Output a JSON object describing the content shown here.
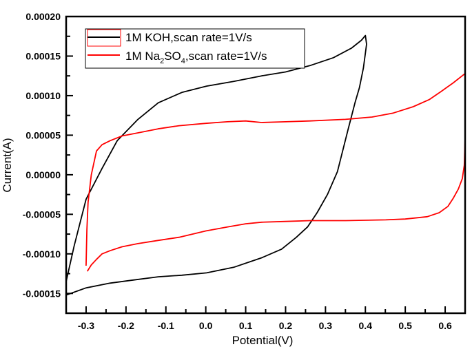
{
  "chart_data": {
    "type": "line",
    "title": "",
    "xlabel": "Potential(V)",
    "ylabel": "Current(A)",
    "xlim": [
      -0.35,
      0.65
    ],
    "ylim": [
      -0.000175,
      0.0002
    ],
    "grid": false,
    "legend_position": "top-left",
    "x_ticks": [
      -0.3,
      -0.2,
      -0.1,
      0.0,
      0.1,
      0.2,
      0.3,
      0.4,
      0.5,
      0.6
    ],
    "x_tick_labels": [
      "-0.3",
      "-0.2",
      "-0.1",
      "0.0",
      "0.1",
      "0.2",
      "0.3",
      "0.4",
      "0.5",
      "0.6"
    ],
    "y_ticks": [
      0.0002,
      0.00015,
      0.0001,
      5e-05,
      0.0,
      -5e-05,
      -0.0001,
      -0.00015
    ],
    "y_tick_labels": [
      "0.00020",
      "0.00015",
      "0.00010",
      "0.00005",
      "0.00000",
      "-0.00005",
      "-0.00010",
      "-0.00015"
    ],
    "series": [
      {
        "name": "1M KOH,scan rate=1V/s",
        "legend_main": "1M KOH,scan rate=1V/s",
        "color": "#000000",
        "x": [
          -0.35,
          -0.33,
          -0.3,
          -0.26,
          -0.222,
          -0.17,
          -0.119,
          -0.06,
          0.002,
          0.07,
          0.14,
          0.2,
          0.261,
          0.32,
          0.365,
          0.39,
          0.4,
          0.403,
          0.395,
          0.385,
          0.374,
          0.356,
          0.33,
          0.305,
          0.279,
          0.255,
          0.227,
          0.19,
          0.14,
          0.07,
          0.002,
          -0.06,
          -0.119,
          -0.18,
          -0.24,
          -0.3,
          -0.35
        ],
        "y": [
          -0.000135,
          -9e-05,
          -3.1e-05,
          8e-06,
          4.3e-05,
          7e-05,
          9.1e-05,
          0.000104,
          0.000112,
          0.000118,
          0.000125,
          0.00013,
          0.000138,
          0.000148,
          0.00016,
          0.00017,
          0.000176,
          0.000165,
          0.000135,
          0.00011,
          9.1e-05,
          5.6e-05,
          4e-06,
          -2.5e-05,
          -4.8e-05,
          -6.6e-05,
          -7.9e-05,
          -9.4e-05,
          -0.000105,
          -0.000117,
          -0.000124,
          -0.000127,
          -0.000129,
          -0.000133,
          -0.000137,
          -0.000143,
          -0.000152
        ]
      },
      {
        "name": "1M Na2SO4,scan rate=1V/s",
        "legend_main": "1M Na",
        "legend_sub1": "2",
        "legend_mid": "SO",
        "legend_sub2": "4",
        "legend_tail": ",scan rate=1V/s",
        "color": "#ff0000",
        "x": [
          -0.3,
          -0.298,
          -0.295,
          -0.287,
          -0.274,
          -0.26,
          -0.24,
          -0.21,
          -0.17,
          -0.12,
          -0.067,
          0.0,
          0.054,
          0.1,
          0.14,
          0.2,
          0.261,
          0.35,
          0.417,
          0.47,
          0.52,
          0.56,
          0.589,
          0.62,
          0.65,
          0.65,
          0.648,
          0.643,
          0.633,
          0.62,
          0.607,
          0.585,
          0.555,
          0.5,
          0.451,
          0.35,
          0.261,
          0.2,
          0.14,
          0.1,
          0.054,
          0.0,
          -0.067,
          -0.12,
          -0.17,
          -0.21,
          -0.24,
          -0.26,
          -0.274,
          -0.287,
          -0.297
        ],
        "y": [
          -0.000115,
          -7e-05,
          -3.5e-05,
          0.0,
          3e-05,
          3.8e-05,
          4.3e-05,
          4.9e-05,
          5.3e-05,
          5.8e-05,
          6.2e-05,
          6.5e-05,
          6.7e-05,
          6.8e-05,
          6.6e-05,
          6.7e-05,
          6.8e-05,
          7e-05,
          7.3e-05,
          7.8e-05,
          8.6e-05,
          9.5e-05,
          0.000105,
          0.000116,
          0.000128,
          4.7e-05,
          1.2e-05,
          -5e-06,
          -1.8e-05,
          -3e-05,
          -4e-05,
          -4.8e-05,
          -5.3e-05,
          -5.6e-05,
          -5.7e-05,
          -5.8e-05,
          -5.8e-05,
          -5.9e-05,
          -6e-05,
          -6.2e-05,
          -6.6e-05,
          -7.1e-05,
          -7.9e-05,
          -8.3e-05,
          -8.7e-05,
          -9.1e-05,
          -9.6e-05,
          -0.0001,
          -0.000107,
          -0.000114,
          -0.000122
        ]
      }
    ]
  }
}
